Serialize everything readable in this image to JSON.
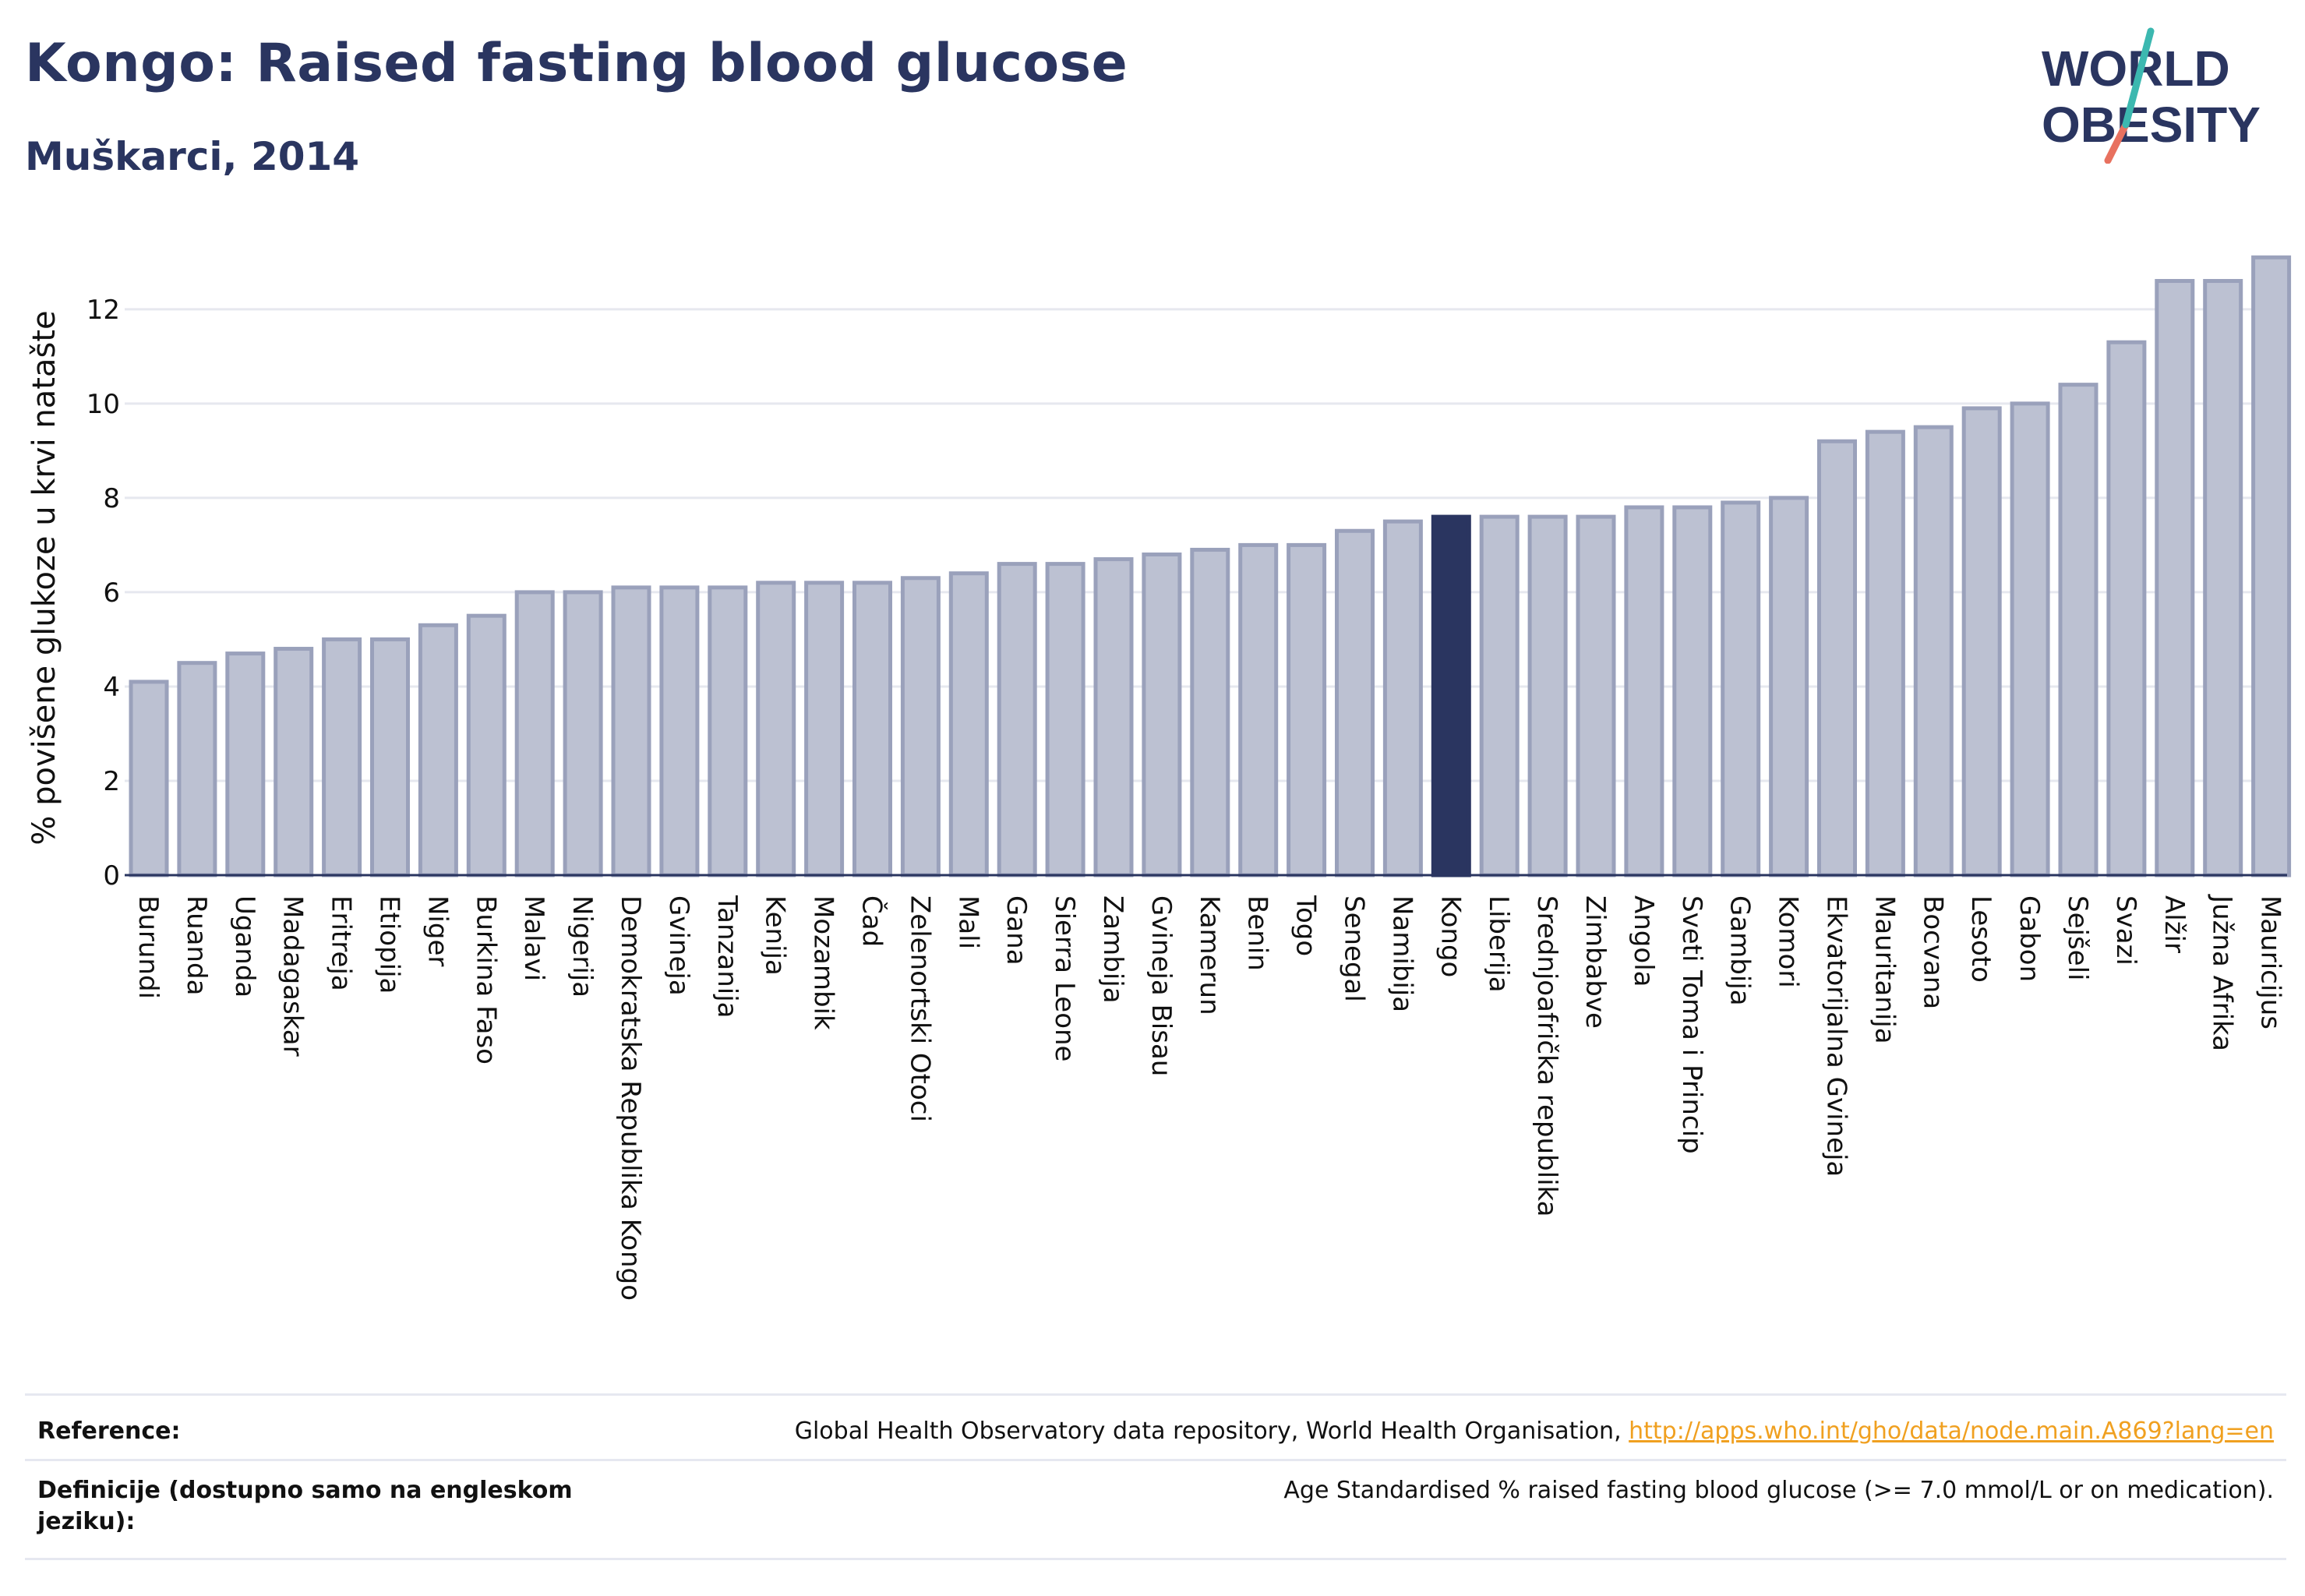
{
  "header": {
    "title": "Kongo: Raised fasting blood glucose",
    "subtitle": "Muškarci, 2014"
  },
  "logo": {
    "line1": "WORLD",
    "line2": "OBESITY"
  },
  "chart_data": {
    "type": "bar",
    "ylabel": "% povišene glukoze u krvi natašte",
    "xlabel": "",
    "ylim": [
      0,
      13.6
    ],
    "yticks": [
      0,
      2,
      4,
      6,
      8,
      10,
      12
    ],
    "grid": true,
    "highlight": "Kongo",
    "colors": {
      "bar": "#bcc1d2",
      "bar_border": "#9aa1bb",
      "highlight": "#2a3560",
      "grid": "#e6e8ef",
      "axis": "#2a3560"
    },
    "categories": [
      "Burundi",
      "Ruanda",
      "Uganda",
      "Madagaskar",
      "Eritreja",
      "Etiopija",
      "Niger",
      "Burkina Faso",
      "Malavi",
      "Nigerija",
      "Demokratska Republika Kongo",
      "Gvineja",
      "Tanzanija",
      "Kenija",
      "Mozambik",
      "Čad",
      "Zelenortski Otoci",
      "Mali",
      "Gana",
      "Sierra Leone",
      "Zambija",
      "Gvineja Bisau",
      "Kamerun",
      "Benin",
      "Togo",
      "Senegal",
      "Namibija",
      "Kongo",
      "Liberija",
      "Srednjoafrička republika",
      "Zimbabve",
      "Angola",
      "Sveti Toma i Princip",
      "Gambija",
      "Komori",
      "Ekvatorijalna Gvineja",
      "Mauritanija",
      "Bocvana",
      "Lesoto",
      "Gabon",
      "Sejšeli",
      "Svazi",
      "Alžir",
      "Južna Afrika",
      "Mauricijus"
    ],
    "values": [
      4.1,
      4.5,
      4.7,
      4.8,
      5.0,
      5.0,
      5.3,
      5.5,
      6.0,
      6.0,
      6.1,
      6.1,
      6.1,
      6.2,
      6.2,
      6.2,
      6.3,
      6.4,
      6.6,
      6.6,
      6.7,
      6.8,
      6.9,
      7.0,
      7.0,
      7.3,
      7.5,
      7.6,
      7.6,
      7.6,
      7.6,
      7.8,
      7.8,
      7.9,
      8.0,
      9.2,
      9.4,
      9.5,
      9.9,
      10.0,
      10.4,
      11.3,
      12.6,
      12.6,
      13.1
    ]
  },
  "footer": {
    "reference_label": "Reference:",
    "reference_text": "Global Health Observatory data repository, World Health Organisation, ",
    "reference_link": "http://apps.who.int/gho/data/node.main.A869?lang=en",
    "definition_label_line1": "Definicije (dostupno samo na engleskom",
    "definition_label_line2": "jeziku):",
    "definition_text": "Age Standardised % raised fasting blood glucose (>= 7.0 mmol/L or on medication)."
  }
}
